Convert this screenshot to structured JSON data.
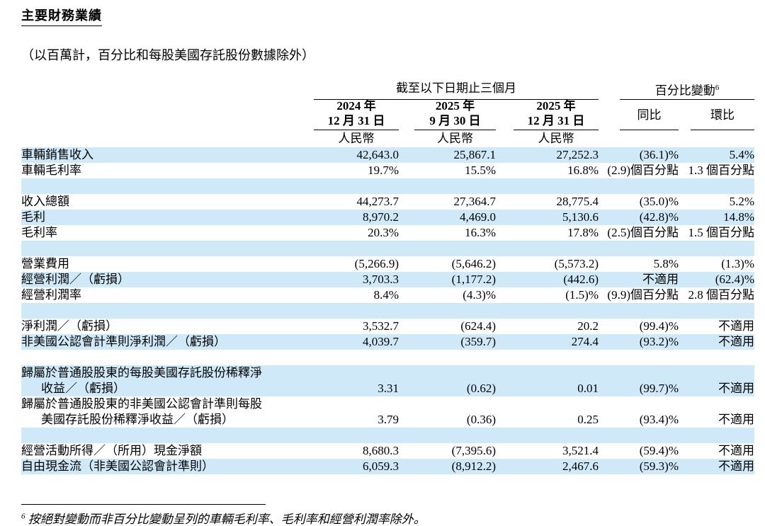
{
  "title": "主要財務業績",
  "subtitle": "（以百萬計，百分比和每股美國存託股份數據除外）",
  "table": {
    "group_headers": {
      "period": "截至以下日期止三個月",
      "change": "百分比變動",
      "change_footnote_ref": "6"
    },
    "columns": [
      {
        "line1": "2024 年",
        "line2": "12 月 31 日",
        "currency": "人民幣"
      },
      {
        "line1": "2025 年",
        "line2": "9 月 30 日",
        "currency": "人民幣"
      },
      {
        "line1": "2025 年",
        "line2": "12 月 31 日",
        "currency": "人民幣"
      },
      {
        "label": "同比"
      },
      {
        "label": "環比"
      }
    ],
    "rows": [
      {
        "type": "data",
        "shade": "blue",
        "label": "車輛銷售收入",
        "values": [
          "42,643.0",
          "25,867.1",
          "27,252.3",
          "(36.1)%",
          "5.4%"
        ]
      },
      {
        "type": "data",
        "shade": "white",
        "label": "車輛毛利率",
        "values": [
          "19.7%",
          "15.5%",
          "16.8%",
          "(2.9)個百分點",
          "1.3 個百分點"
        ]
      },
      {
        "type": "spacer",
        "shade": "blue"
      },
      {
        "type": "data",
        "shade": "white",
        "label": "收入總額",
        "values": [
          "44,273.7",
          "27,364.7",
          "28,775.4",
          "(35.0)%",
          "5.2%"
        ]
      },
      {
        "type": "data",
        "shade": "blue",
        "label": "毛利",
        "values": [
          "8,970.2",
          "4,469.0",
          "5,130.6",
          "(42.8)%",
          "14.8%"
        ]
      },
      {
        "type": "data",
        "shade": "white",
        "label": "毛利率",
        "values": [
          "20.3%",
          "16.3%",
          "17.8%",
          "(2.5)個百分點",
          "1.5 個百分點"
        ]
      },
      {
        "type": "spacer",
        "shade": "blue"
      },
      {
        "type": "data",
        "shade": "white",
        "label": "營業費用",
        "values": [
          "(5,266.9)",
          "(5,646.2)",
          "(5,573.2)",
          "5.8%",
          "(1.3)%"
        ]
      },
      {
        "type": "data",
        "shade": "blue",
        "label": "經營利潤／（虧損）",
        "values": [
          "3,703.3",
          "(1,177.2)",
          "(442.6)",
          "不適用",
          "(62.4)%"
        ]
      },
      {
        "type": "data",
        "shade": "white",
        "label": "經營利潤率",
        "values": [
          "8.4%",
          "(4.3)%",
          "(1.5)%",
          "(9.9)個百分點",
          "2.8 個百分點"
        ]
      },
      {
        "type": "spacer",
        "shade": "blue"
      },
      {
        "type": "data",
        "shade": "white",
        "label": "淨利潤／（虧損）",
        "values": [
          "3,532.7",
          "(624.4)",
          "20.2",
          "(99.4)%",
          "不適用"
        ]
      },
      {
        "type": "data",
        "shade": "blue",
        "label": "非美國公認會計準則淨利潤／（虧損）",
        "values": [
          "4,039.7",
          "(359.7)",
          "274.4",
          "(93.2)%",
          "不適用"
        ]
      },
      {
        "type": "spacer",
        "shade": "white"
      },
      {
        "type": "data",
        "shade": "blue",
        "label": "歸屬於普通股股東的每股美國存託股份稀釋淨",
        "label2": "收益／（虧損）",
        "values": [
          "3.31",
          "(0.62)",
          "0.01",
          "(99.7)%",
          "不適用"
        ]
      },
      {
        "type": "data",
        "shade": "white",
        "label": "歸屬於普通股股東的非美國公認會計準則每股",
        "label2": "美國存託股份稀釋淨收益／（虧損）",
        "values": [
          "3.79",
          "(0.36)",
          "0.25",
          "(93.4)%",
          "不適用"
        ]
      },
      {
        "type": "spacer",
        "shade": "blue"
      },
      {
        "type": "data",
        "shade": "white",
        "label": "經營活動所得／（所用）現金淨額",
        "values": [
          "8,680.3",
          "(7,395.6)",
          "3,521.4",
          "(59.4)%",
          "不適用"
        ]
      },
      {
        "type": "data",
        "shade": "blue",
        "label": "自由現金流（非美國公認會計準則）",
        "values": [
          "6,059.3",
          "(8,912.2)",
          "2,467.6",
          "(59.3)%",
          "不適用"
        ]
      }
    ]
  },
  "footnote": {
    "ref": "6",
    "text": "按絕對變動而非百分比變動呈列的車輛毛利率、毛利率和經營利潤率除外。"
  }
}
